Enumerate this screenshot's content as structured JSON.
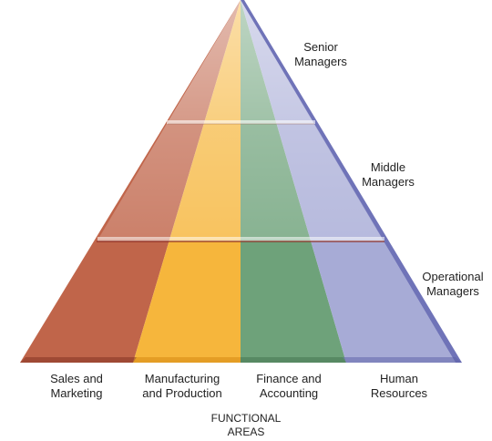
{
  "levels": [
    {
      "line1": "Senior",
      "line2": "Managers"
    },
    {
      "line1": "Middle",
      "line2": "Managers"
    },
    {
      "line1": "Operational",
      "line2": "Managers"
    }
  ],
  "areas": [
    {
      "line1": "Sales and",
      "line2": "Marketing",
      "color": "#c0654a"
    },
    {
      "line1": "Manufacturing",
      "line2": "and Production",
      "color": "#f6b63c"
    },
    {
      "line1": "Finance and",
      "line2": "Accounting",
      "color": "#6ea27a"
    },
    {
      "line1": "Human",
      "line2": "Resources",
      "color": "#a7abd6"
    }
  ],
  "functional_title": {
    "line1": "FUNCTIONAL",
    "line2": "AREAS"
  },
  "colors": {
    "sales": "#c0654a",
    "production": "#f6b63c",
    "finance": "#6ea27a",
    "hr": "#a7abd6",
    "edge_right": "#6f73b8",
    "band_divider": "#d9d9ec"
  }
}
